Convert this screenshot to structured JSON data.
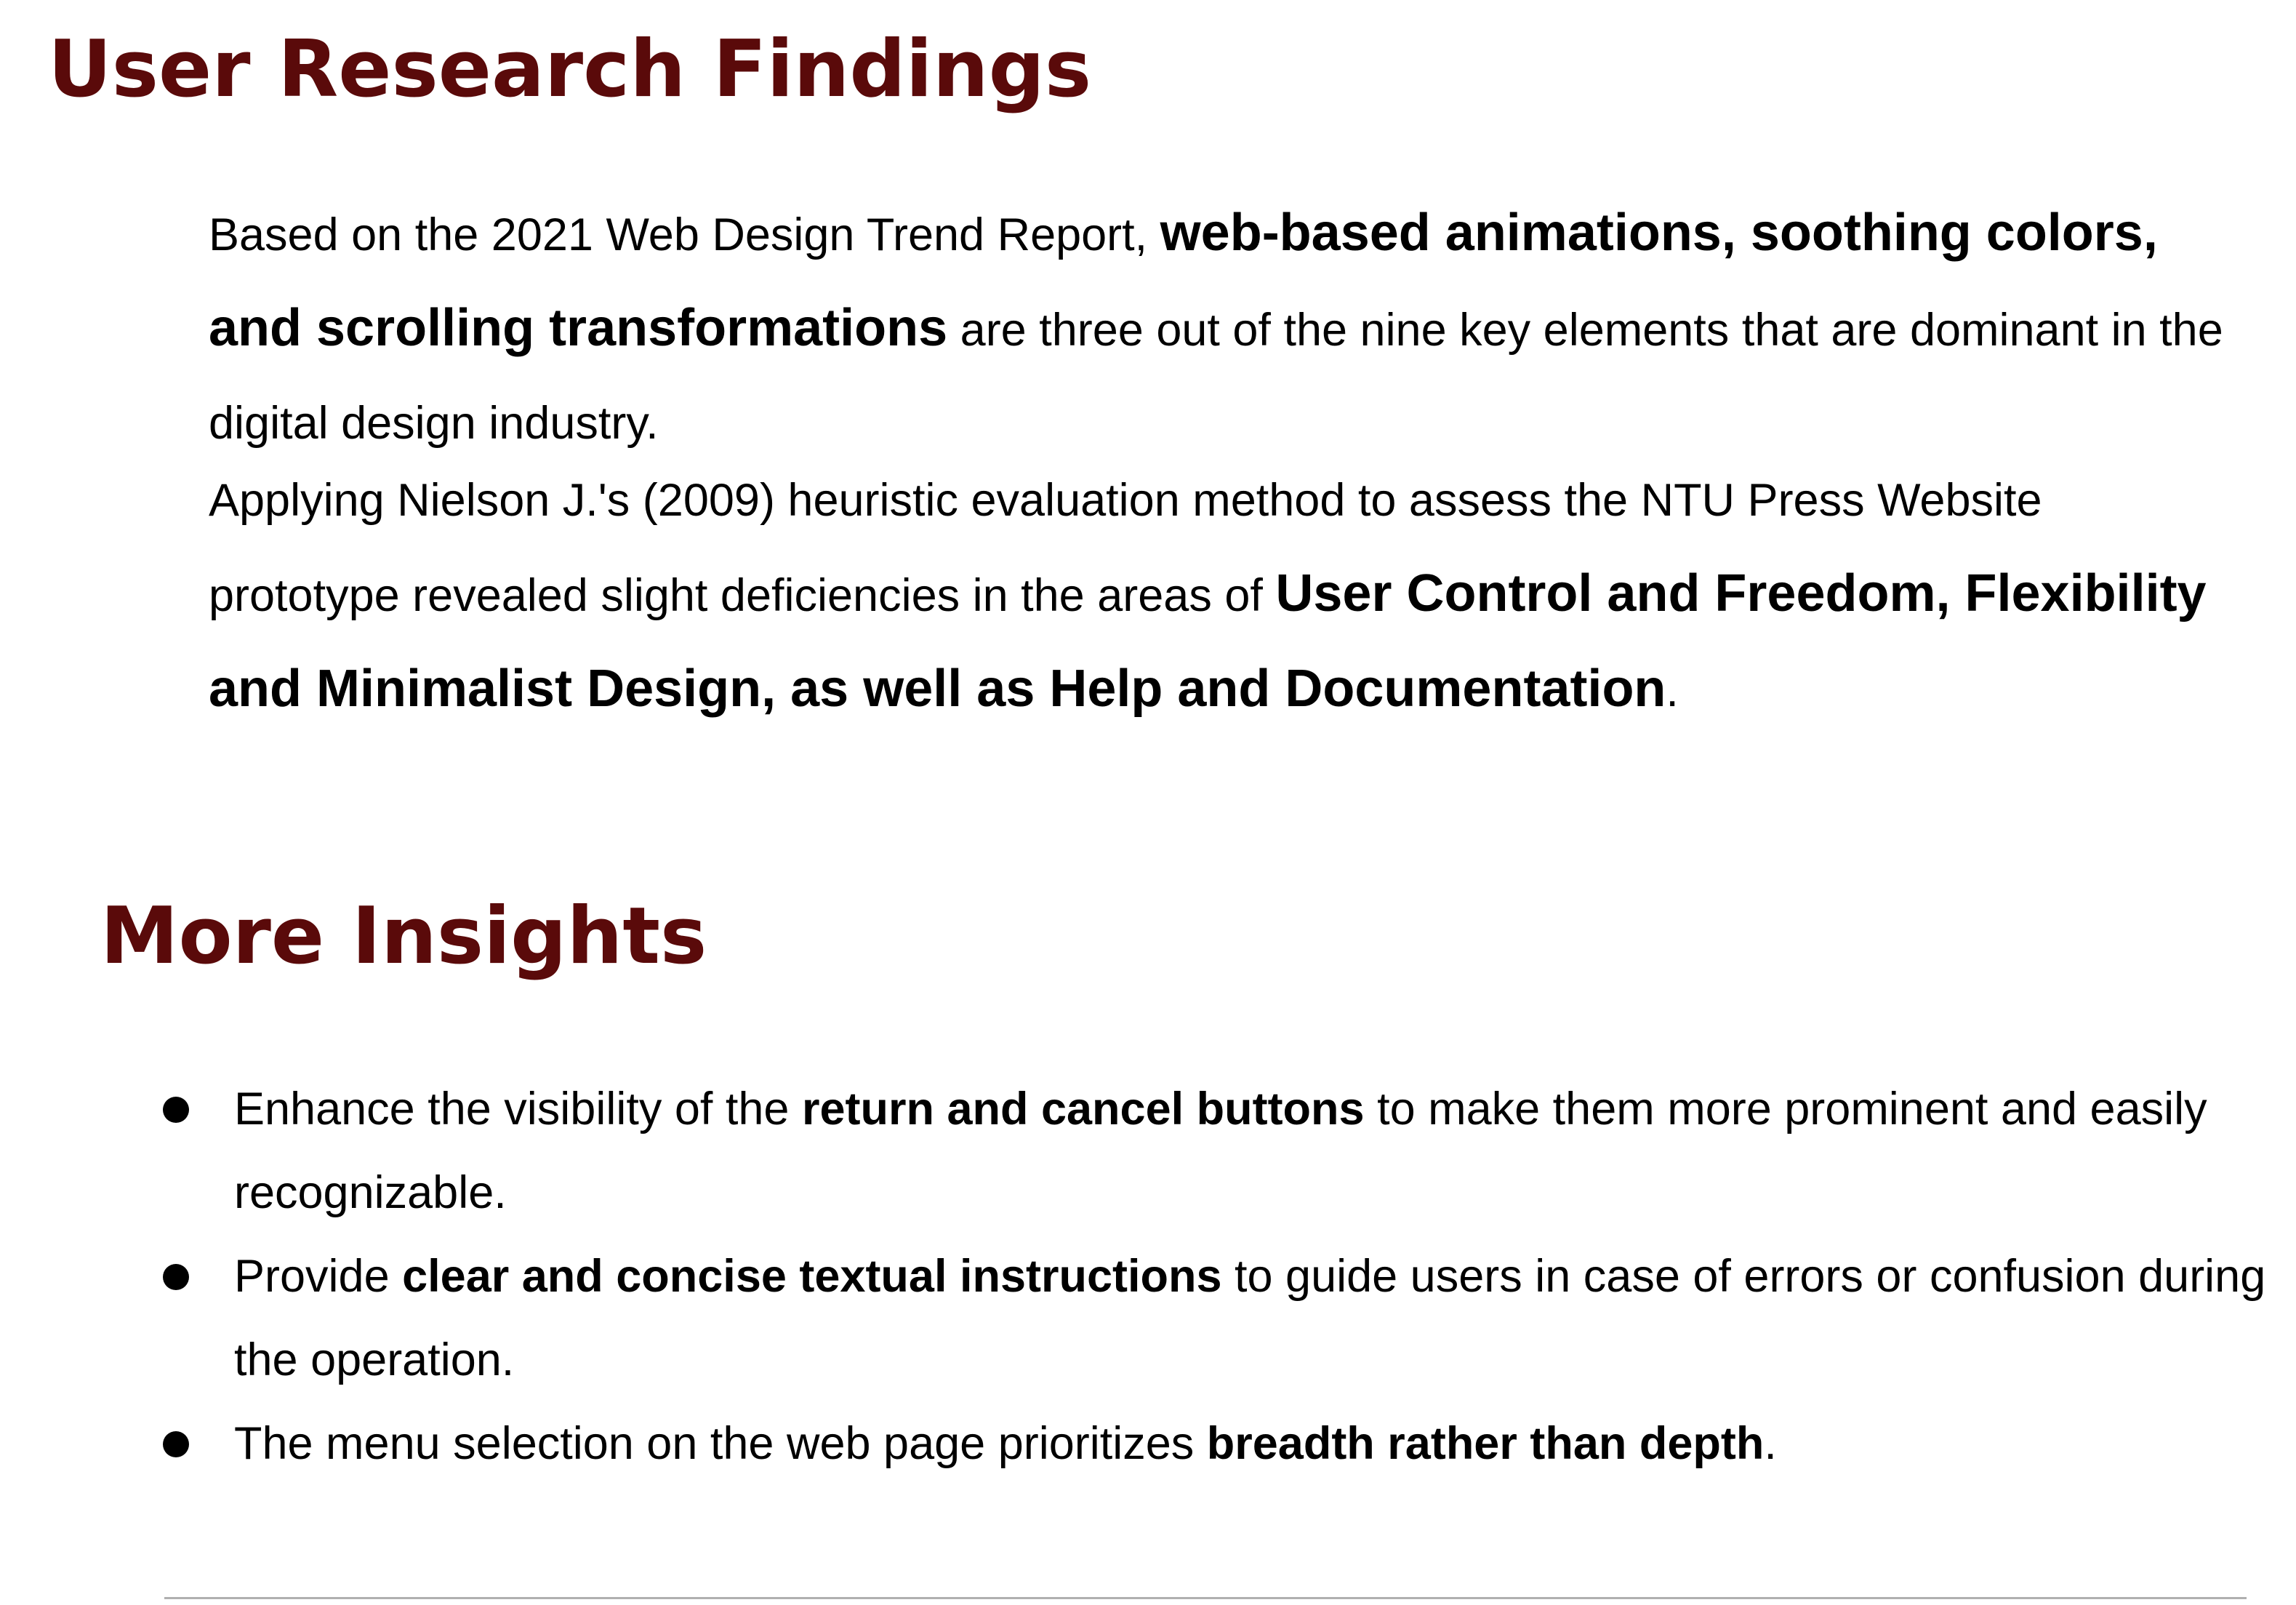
{
  "section1": {
    "title": "User Research Findings",
    "paragraph1": {
      "before": "Based on the 2021 Web Design Trend Report, ",
      "bold": "web-based animations, soothing colors, and scrolling transformations",
      "after": " are three out of the nine key elements that are dominant in the digital design industry."
    },
    "paragraph2": {
      "before": "Applying Nielson J.'s (2009) heuristic evaluation method to assess the NTU Press Website prototype revealed slight deficiencies in the areas of ",
      "bold": "User Control and Freedom, Flexibility and Minimalist Design, as well as Help and Documentation",
      "after": "."
    }
  },
  "section2": {
    "title": "More Insights",
    "bullets": [
      {
        "before": "Enhance the visibility of the ",
        "bold": "return and cancel buttons",
        "after": " to make them more prominent and easily recognizable."
      },
      {
        "before": "Provide ",
        "bold": "clear and concise textual instructions",
        "after": " to guide users in case of errors or confusion during the operation."
      },
      {
        "before": "The menu selection on the web page prioritizes ",
        "bold": "breadth rather than depth",
        "after": "."
      }
    ]
  },
  "colors": {
    "heading": "#5a0a0a",
    "body_text": "#000000",
    "divider": "#b0b0b0"
  }
}
